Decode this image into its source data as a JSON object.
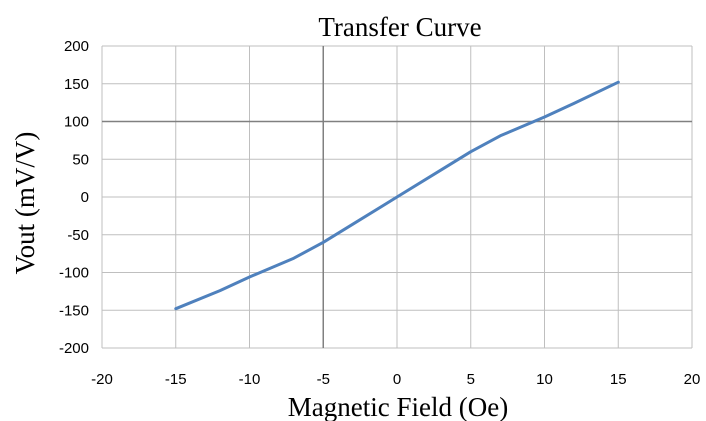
{
  "chart_data": {
    "type": "line",
    "title": "Transfer Curve",
    "xlabel": "Magnetic Field (Oe)",
    "ylabel": "Vout (mV/V)",
    "xlim": [
      -20,
      20
    ],
    "ylim": [
      -200,
      200
    ],
    "xticks": [
      -20,
      -15,
      -10,
      -5,
      0,
      5,
      10,
      15,
      20
    ],
    "yticks": [
      200,
      150,
      100,
      50,
      0,
      -50,
      -100,
      -150,
      -200
    ],
    "grid": true,
    "legend": "none",
    "colors": {
      "line": "#4f81bd",
      "grid": "#bfbfbf",
      "axis": "#808080"
    },
    "series": [
      {
        "x": [
          -15,
          -12,
          -10,
          -7,
          -5,
          -3,
          0,
          3,
          5,
          7,
          10,
          12,
          15
        ],
        "y": [
          -148,
          -124,
          -106,
          -81,
          -60,
          -36,
          0,
          36,
          60,
          81,
          106,
          124,
          152
        ]
      }
    ]
  }
}
